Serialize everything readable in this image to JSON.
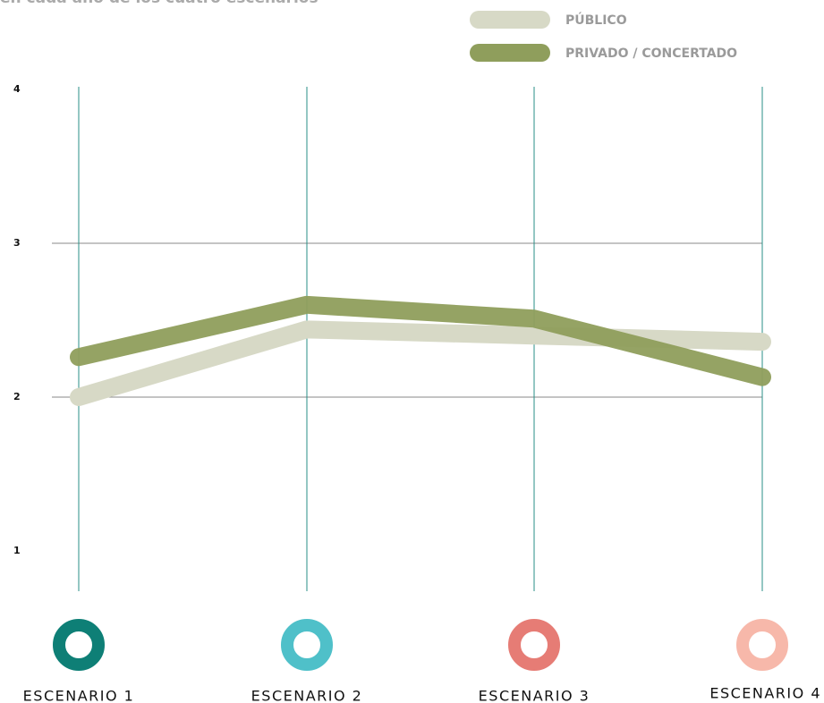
{
  "chart_data": {
    "type": "line",
    "subtitle": "en cada año de los cuatro escenarios",
    "categories": [
      "ESCENARIO 1",
      "ESCENARIO 2",
      "ESCENARIO 3",
      "ESCENARIO 4"
    ],
    "category_colors": [
      "#0e7f76",
      "#4fc0c9",
      "#e67c75",
      "#f7b8aa"
    ],
    "series": [
      {
        "name": "PÚBLICO",
        "color": "#d7d9c6",
        "values": [
          2.0,
          2.44,
          2.4,
          2.36
        ]
      },
      {
        "name": "PRIVADO / CONCERTADO",
        "color": "#8f9e5c",
        "values": [
          2.26,
          2.6,
          2.51,
          2.13
        ]
      }
    ],
    "ylim": [
      0.75,
      4
    ],
    "yticks": [
      1,
      2,
      3,
      4
    ],
    "grid_lines": [
      2,
      3
    ]
  }
}
